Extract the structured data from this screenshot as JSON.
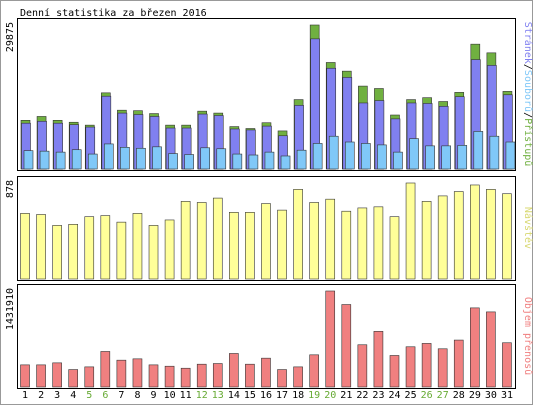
{
  "title": "Denní statistika za březen 2016",
  "colors": {
    "frame": "#000000",
    "pages": "#8080f0",
    "files": "#80c8f8",
    "hits": "#70b040",
    "visits": "#ffff99",
    "bandwidth": "#f08080",
    "weekend_label": "#66aa33",
    "bar_outline": "#333333"
  },
  "chart_data": [
    {
      "type": "bar",
      "title": "Denní statistika za březen 2016",
      "panel": "top",
      "categories": [
        "1",
        "2",
        "3",
        "4",
        "5",
        "6",
        "7",
        "8",
        "9",
        "10",
        "11",
        "12",
        "13",
        "14",
        "15",
        "16",
        "17",
        "18",
        "19",
        "20",
        "21",
        "22",
        "23",
        "24",
        "25",
        "26",
        "27",
        "28",
        "29",
        "30",
        "31"
      ],
      "weekend_days": [
        "5",
        "6",
        "12",
        "13",
        "19",
        "20",
        "26",
        "27"
      ],
      "ymax_label": "29875",
      "ylim": [
        0,
        29875
      ],
      "legend": [
        {
          "label": "Stránek",
          "color": "#8080f0"
        },
        {
          "label": "/",
          "color": "#000000"
        },
        {
          "label": "Souborů",
          "color": "#80c8f8"
        },
        {
          "label": "/",
          "color": "#000000"
        },
        {
          "label": "Přístupů",
          "color": "#70b040"
        }
      ],
      "series": [
        {
          "name": "Přístupů",
          "values": [
            10100,
            10900,
            10100,
            9700,
            9100,
            15800,
            12200,
            12100,
            11500,
            9100,
            9100,
            12000,
            11600,
            8800,
            8400,
            9600,
            7900,
            14400,
            29875,
            22100,
            20300,
            17200,
            16700,
            11200,
            14400,
            14800,
            14000,
            15900,
            25900,
            24100,
            16100
          ]
        },
        {
          "name": "Stránek",
          "values": [
            9500,
            9900,
            9500,
            9200,
            8700,
            15100,
            11600,
            11300,
            10900,
            8500,
            8500,
            11400,
            11100,
            8300,
            8100,
            8900,
            6900,
            13200,
            27000,
            20900,
            19000,
            13700,
            14200,
            10400,
            13700,
            13600,
            13000,
            15000,
            22700,
            21500,
            15400
          ]
        },
        {
          "name": "Souborů",
          "values": [
            3800,
            3700,
            3500,
            4000,
            3100,
            5200,
            4500,
            4300,
            4600,
            3200,
            3000,
            4400,
            4200,
            3100,
            2900,
            3500,
            2700,
            3900,
            5300,
            6800,
            5600,
            5300,
            5000,
            3500,
            6300,
            4800,
            4800,
            4900,
            7800,
            6800,
            5600
          ]
        }
      ]
    },
    {
      "type": "bar",
      "panel": "middle",
      "categories": [
        "1",
        "2",
        "3",
        "4",
        "5",
        "6",
        "7",
        "8",
        "9",
        "10",
        "11",
        "12",
        "13",
        "14",
        "15",
        "16",
        "17",
        "18",
        "19",
        "20",
        "21",
        "22",
        "23",
        "24",
        "25",
        "26",
        "27",
        "28",
        "29",
        "30",
        "31"
      ],
      "ymax_label": "878",
      "ylim": [
        0,
        878
      ],
      "legend": [
        {
          "label": "Návštěv",
          "color": "#ffff99"
        }
      ],
      "series": [
        {
          "name": "Návštěv",
          "values": [
            600,
            590,
            490,
            500,
            570,
            580,
            520,
            600,
            490,
            540,
            710,
            700,
            740,
            610,
            610,
            690,
            630,
            820,
            700,
            730,
            620,
            650,
            660,
            570,
            878,
            710,
            760,
            800,
            860,
            820,
            780
          ]
        }
      ]
    },
    {
      "type": "bar",
      "panel": "bottom",
      "categories": [
        "1",
        "2",
        "3",
        "4",
        "5",
        "6",
        "7",
        "8",
        "9",
        "10",
        "11",
        "12",
        "13",
        "14",
        "15",
        "16",
        "17",
        "18",
        "19",
        "20",
        "21",
        "22",
        "23",
        "24",
        "25",
        "26",
        "27",
        "28",
        "29",
        "30",
        "31"
      ],
      "ymax_label": "1431910",
      "ylim": [
        0,
        1431910
      ],
      "legend": [
        {
          "label": "Objem přenosů",
          "color": "#f08080"
        }
      ],
      "series": [
        {
          "name": "Objem přenosů",
          "values": [
            330000,
            330000,
            360000,
            260000,
            300000,
            530000,
            400000,
            420000,
            330000,
            310000,
            280000,
            340000,
            350000,
            500000,
            340000,
            430000,
            260000,
            300000,
            480000,
            1431910,
            1230000,
            630000,
            830000,
            470000,
            600000,
            650000,
            570000,
            700000,
            1180000,
            1120000,
            660000
          ]
        }
      ]
    }
  ]
}
